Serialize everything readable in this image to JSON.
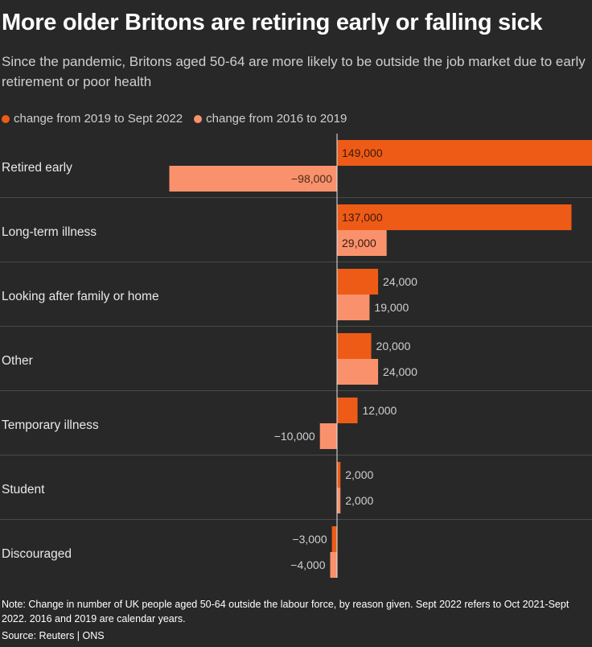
{
  "title": "More older Britons are retiring early or falling sick",
  "subtitle": "Since the pandemic, Britons aged 50-64 are more likely to be outside the job market due to early retirement or poor health",
  "note": "Note: Change in number of UK people aged 50-64 outside the labour force, by reason given. Sept 2022 refers to Oct 2021-Sept 2022. 2016 and 2019 are calendar years.",
  "source": "Source: Reuters | ONS",
  "colors": {
    "series1": "#ee5b16",
    "series2": "#f9926c",
    "background": "#282828"
  },
  "chart_data": {
    "type": "bar",
    "orientation": "horizontal",
    "categories": [
      "Retired early",
      "Long-term illness",
      "Looking after family or home",
      "Other",
      "Temporary illness",
      "Student",
      "Discouraged"
    ],
    "series": [
      {
        "name": "change from 2019 to Sept 2022",
        "values": [
          149000,
          137000,
          24000,
          20000,
          12000,
          2000,
          -3000
        ],
        "labels": [
          "149,000",
          "137,000",
          "24,000",
          "20,000",
          "12,000",
          "2,000",
          "−3,000"
        ]
      },
      {
        "name": "change from 2016 to 2019",
        "values": [
          -98000,
          29000,
          19000,
          24000,
          -10000,
          2000,
          -4000
        ],
        "labels": [
          "−98,000",
          "29,000",
          "19,000",
          "24,000",
          "−10,000",
          "2,000",
          "−4,000"
        ]
      }
    ],
    "xlim": [
      -98000,
      149000
    ],
    "legend_position": "top-left",
    "grid": false
  }
}
